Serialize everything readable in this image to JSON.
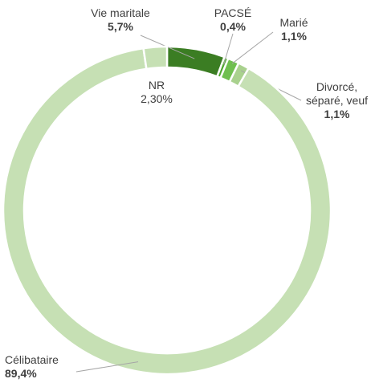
{
  "chart_data": {
    "type": "donut",
    "categories": [
      "Vie maritale",
      "PACSÉ",
      "Marié",
      "Divorcé, séparé, veuf",
      "Célibataire",
      "NR"
    ],
    "values": [
      5.7,
      0.4,
      1.1,
      1.1,
      89.4,
      2.3
    ],
    "value_labels": [
      "5,7%",
      "0,4%",
      "1,1%",
      "1,1%",
      "89,4%",
      "2,30%"
    ],
    "colors": [
      "#3b7d23",
      "#4ea72e",
      "#6fbf4f",
      "#a9d18e",
      "#c6e0b4",
      "#c6e0b4"
    ]
  }
}
